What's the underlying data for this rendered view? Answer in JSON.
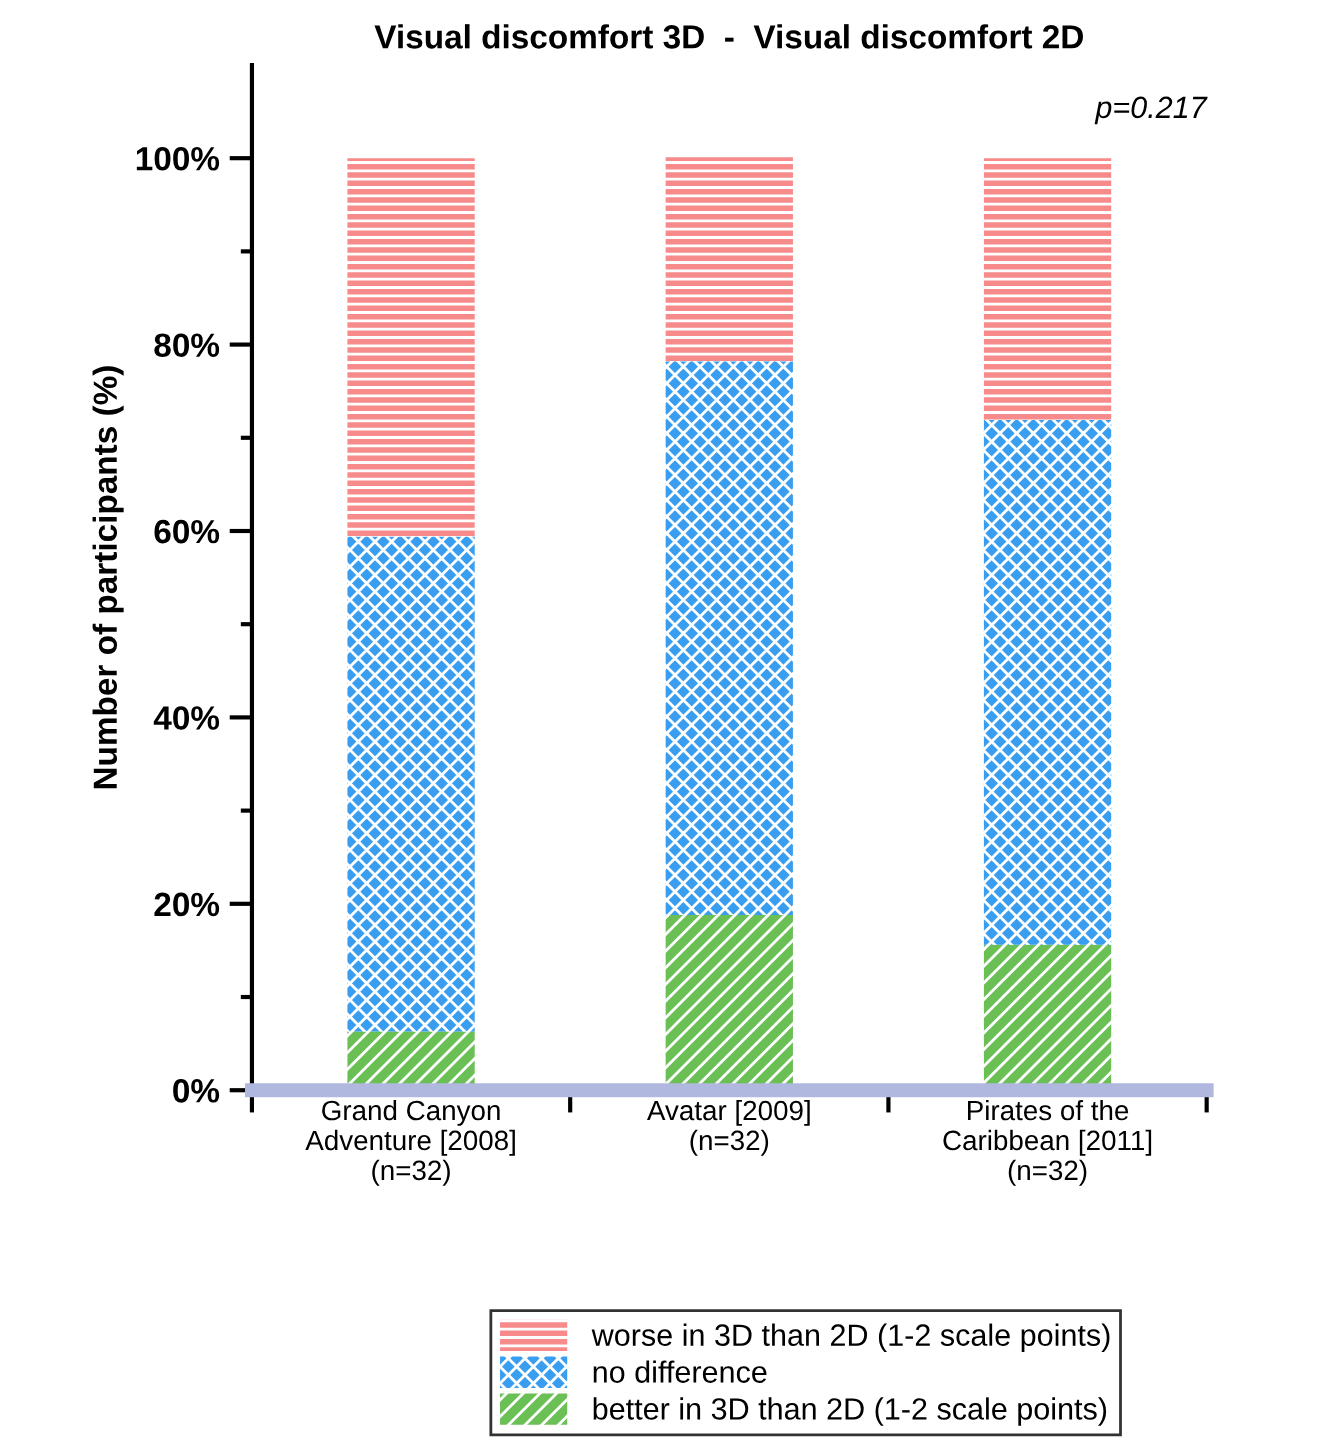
{
  "chart_data": {
    "type": "bar",
    "stacked": true,
    "title": "Visual discomfort 3D  -  Visual discomfort 2D",
    "ylabel": "Number of participants (%)",
    "categories": [
      "Grand Canyon\nAdventure [2008]\n(n=32)",
      "Avatar [2009]\n(n=32)",
      "Pirates of the\nCaribbean [2011]\n(n=32)"
    ],
    "series": [
      {
        "name": "better in 3D than 2D (1-2 scale points)",
        "color": "#6abf55",
        "values": [
          6.3,
          18.8,
          15.6
        ]
      },
      {
        "name": "no difference",
        "color": "#3a9ef0",
        "values": [
          53.1,
          59.4,
          56.3
        ]
      },
      {
        "name": "worse in 3D than 2D (1-2 scale points)",
        "color": "#f78b8b",
        "values": [
          40.6,
          21.9,
          28.1
        ]
      }
    ],
    "ylim": [
      0,
      110
    ],
    "yticks": [
      {
        "value": 0,
        "label": "0%"
      },
      {
        "value": 20,
        "label": "20%"
      },
      {
        "value": 40,
        "label": "40%"
      },
      {
        "value": 60,
        "label": "60%"
      },
      {
        "value": 80,
        "label": "80%"
      },
      {
        "value": 100,
        "label": "100%"
      }
    ],
    "annotations": [
      "p=0.217"
    ],
    "legend": "bottom",
    "grid": false
  }
}
